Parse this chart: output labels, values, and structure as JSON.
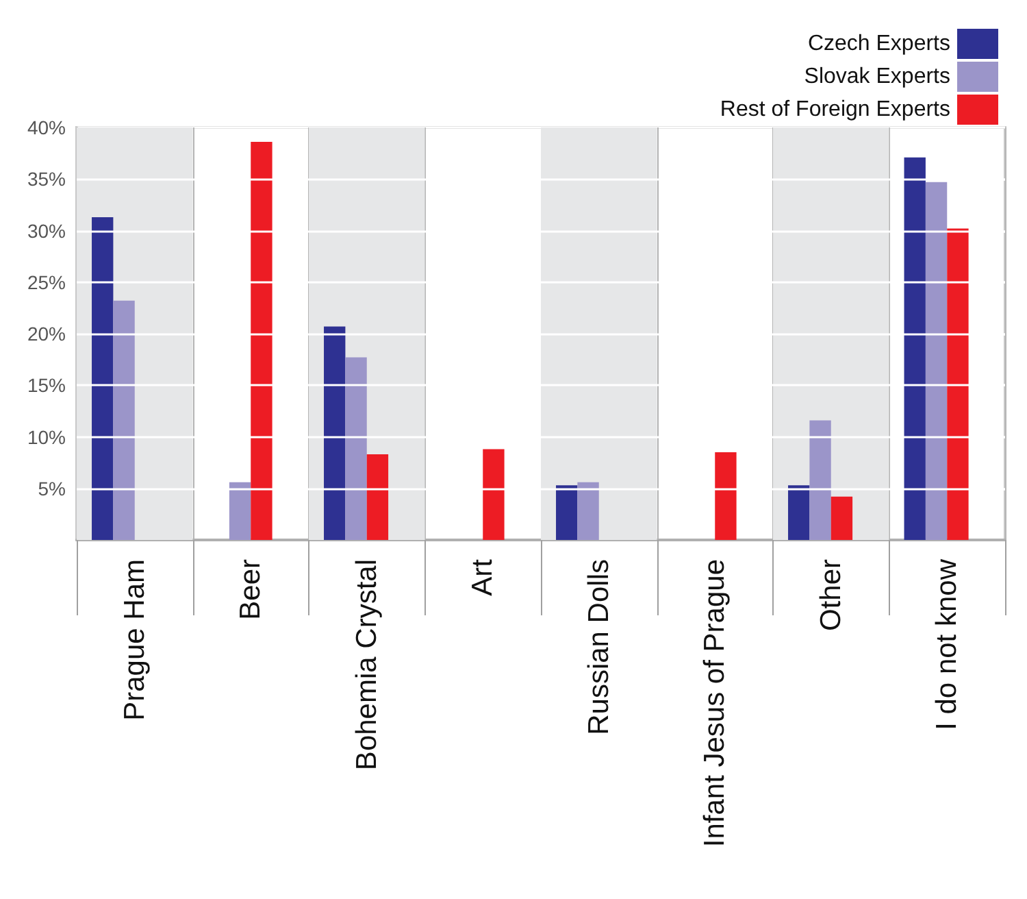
{
  "chart_data": {
    "type": "bar",
    "categories": [
      "Prague Ham",
      "Beer",
      "Bohemia Crystal",
      "Art",
      "Russian Dolls",
      "Infant Jesus of Prague",
      "Other",
      "I do not know"
    ],
    "series": [
      {
        "name": "Czech Experts",
        "color": "#2e3192",
        "values": [
          31.3,
          null,
          20.7,
          null,
          5.3,
          null,
          5.3,
          37.1
        ]
      },
      {
        "name": "Slovak Experts",
        "color": "#9b95c9",
        "values": [
          23.2,
          5.6,
          17.7,
          null,
          5.6,
          null,
          11.6,
          34.7
        ]
      },
      {
        "name": "Rest of Foreign Experts",
        "color": "#ed1c24",
        "values": [
          null,
          38.6,
          8.3,
          8.8,
          null,
          8.5,
          4.2,
          30.2
        ]
      }
    ],
    "ylim": [
      0,
      40
    ],
    "yticks": [
      {
        "value": 0,
        "label": null
      },
      {
        "value": 5,
        "label": "5%"
      },
      {
        "value": 10,
        "label": "10%"
      },
      {
        "value": 15,
        "label": "15%"
      },
      {
        "value": 20,
        "label": "20%"
      },
      {
        "value": 25,
        "label": "25%"
      },
      {
        "value": 30,
        "label": "30%"
      },
      {
        "value": 35,
        "label": "35%"
      },
      {
        "value": 40,
        "label": "40%"
      }
    ],
    "bands": [
      {
        "axis": "x",
        "from": "Prague Ham",
        "to": "Prague Ham",
        "color": "#e6e7e8"
      },
      {
        "axis": "x",
        "from": "Bohemia Crystal",
        "to": "Bohemia Crystal",
        "color": "#e6e7e8"
      },
      {
        "axis": "x",
        "from": "Russian Dolls",
        "to": "Russian Dolls",
        "color": "#e6e7e8"
      },
      {
        "axis": "x",
        "from": "Other",
        "to": "Other",
        "color": "#e6e7e8"
      }
    ],
    "grid": "y",
    "legend": "top right"
  }
}
